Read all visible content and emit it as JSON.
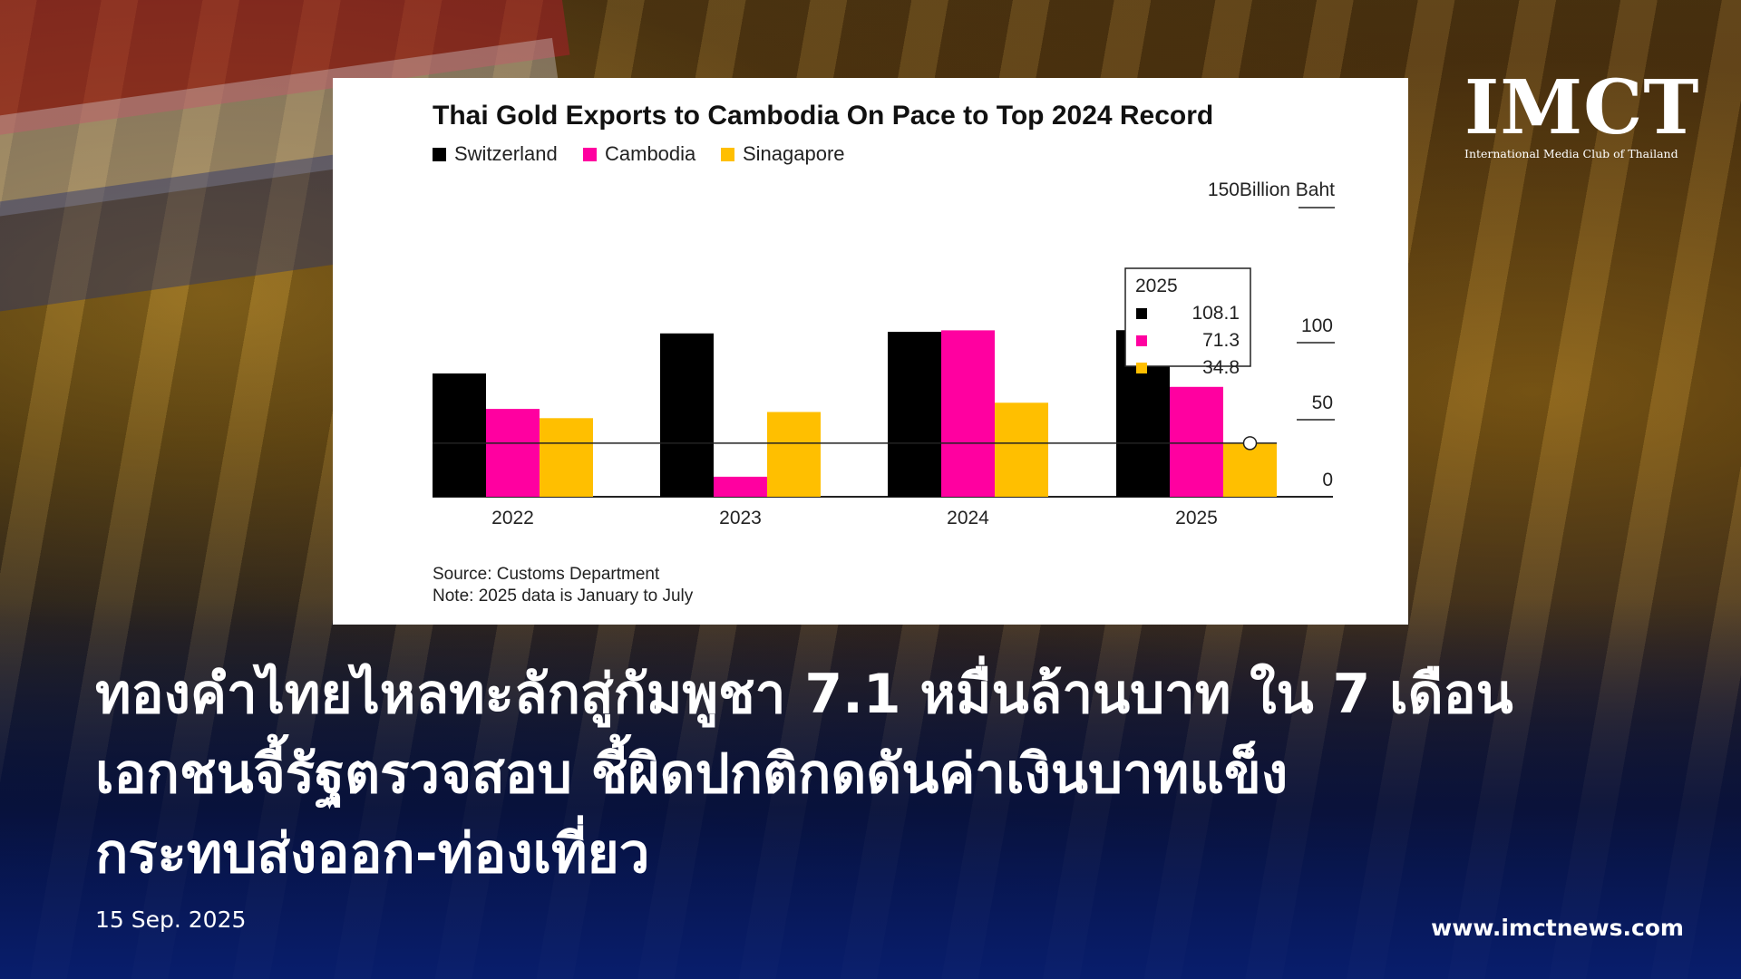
{
  "branding": {
    "logo_text": "IMCT",
    "logo_subtitle": "International Media Club of Thailand",
    "website": "www.imctnews.com"
  },
  "headline": {
    "lines": [
      "ทองคำไทยไหลทะลักสู่กัมพูชา 7.1 หมื่นล้านบาท ใน 7 เดือน",
      "เอกชนจี้รัฐตรวจสอบ ชี้ผิดปกติกดดันค่าเงินบาทแข็ง",
      "กระทบส่งออก-ท่องเที่ยว"
    ]
  },
  "date": "15 Sep. 2025",
  "colors": {
    "switzerland": "#000000",
    "cambodia": "#ff00a0",
    "singapore": "#ffbf00"
  },
  "chart_data": {
    "type": "bar",
    "title": "Thai Gold Exports to Cambodia On Pace to Top 2024 Record",
    "unit_label": "150Billion Baht",
    "categories": [
      "2022",
      "2023",
      "2024",
      "2025"
    ],
    "series": [
      {
        "name": "Switzerland",
        "values": [
          80,
          106,
          107,
          108.1
        ]
      },
      {
        "name": "Cambodia",
        "values": [
          57,
          13,
          108,
          71.3
        ]
      },
      {
        "name": "Sinagapore",
        "values": [
          51,
          55,
          61,
          34.8
        ]
      }
    ],
    "ylim": [
      0,
      150
    ],
    "yticks": [
      "0",
      "50",
      "100"
    ],
    "reference_value": 34.8,
    "tooltip": {
      "title": "2025",
      "values": [
        "108.1",
        "71.3",
        "34.8"
      ]
    },
    "legend_position": "top-left",
    "source": "Source: Customs Department",
    "note": "Note: 2025 data is January to July"
  }
}
